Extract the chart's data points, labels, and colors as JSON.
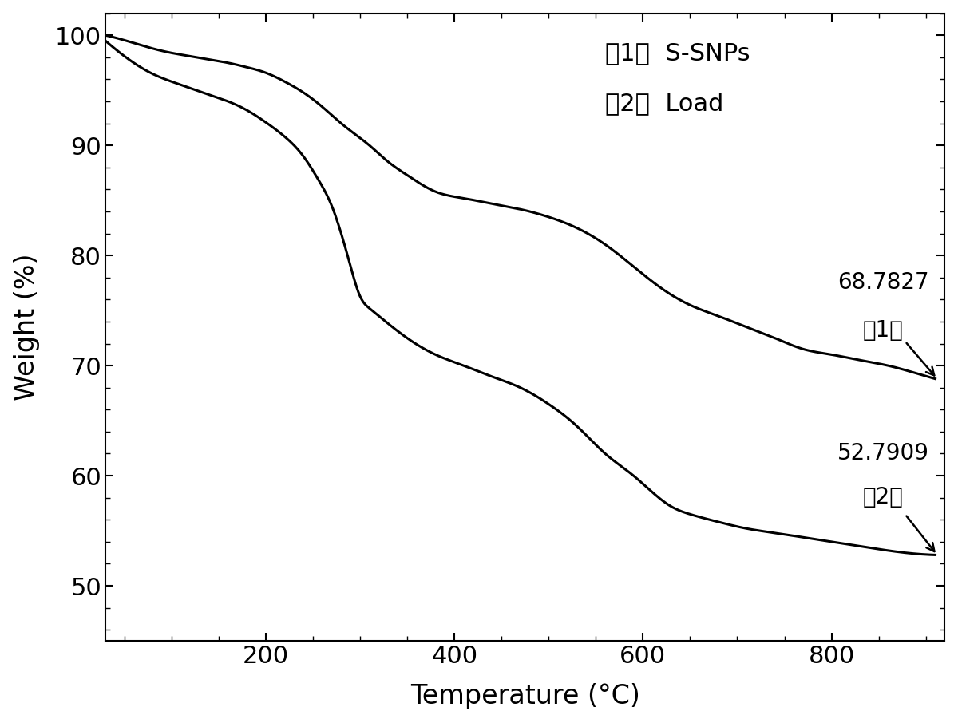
{
  "xlabel": "Temperature (°C)",
  "ylabel": "Weight (%)",
  "xlim": [
    30,
    920
  ],
  "ylim": [
    45,
    102
  ],
  "yticks": [
    50,
    60,
    70,
    80,
    90,
    100
  ],
  "xticks": [
    200,
    400,
    600,
    800
  ],
  "line_color": "#000000",
  "line_width": 2.2,
  "annotation1_value": "68.7827",
  "annotation1_label": "（1）",
  "annotation2_value": "52.7909",
  "annotation2_label": "（2）",
  "legend1": "（1）  S-SNPs",
  "legend2": "（2）  Load",
  "curve1_x": [
    30,
    60,
    80,
    100,
    120,
    140,
    160,
    180,
    200,
    220,
    240,
    260,
    280,
    295,
    310,
    330,
    350,
    380,
    410,
    440,
    470,
    500,
    530,
    560,
    590,
    620,
    650,
    680,
    710,
    740,
    770,
    800,
    830,
    860,
    890,
    910
  ],
  "curve1_y": [
    100.0,
    99.3,
    98.8,
    98.4,
    98.1,
    97.8,
    97.5,
    97.1,
    96.6,
    95.8,
    94.8,
    93.5,
    92.0,
    91.0,
    90.0,
    88.5,
    87.3,
    85.8,
    85.2,
    84.7,
    84.2,
    83.5,
    82.5,
    81.0,
    79.0,
    77.0,
    75.5,
    74.5,
    73.5,
    72.5,
    71.5,
    71.0,
    70.5,
    70.0,
    69.3,
    68.8
  ],
  "curve2_x": [
    30,
    60,
    80,
    100,
    120,
    140,
    160,
    180,
    200,
    220,
    240,
    255,
    270,
    280,
    290,
    300,
    310,
    330,
    350,
    380,
    410,
    440,
    470,
    500,
    530,
    560,
    590,
    610,
    630,
    650,
    680,
    710,
    740,
    770,
    800,
    830,
    860,
    890,
    910
  ],
  "curve2_y": [
    99.5,
    97.5,
    96.5,
    95.8,
    95.2,
    94.6,
    94.0,
    93.2,
    92.1,
    90.8,
    89.0,
    87.0,
    84.5,
    82.0,
    79.0,
    76.3,
    75.2,
    73.8,
    72.5,
    71.0,
    70.0,
    69.0,
    68.0,
    66.5,
    64.5,
    62.0,
    60.0,
    58.5,
    57.2,
    56.5,
    55.8,
    55.2,
    54.8,
    54.4,
    54.0,
    53.6,
    53.2,
    52.9,
    52.8
  ]
}
